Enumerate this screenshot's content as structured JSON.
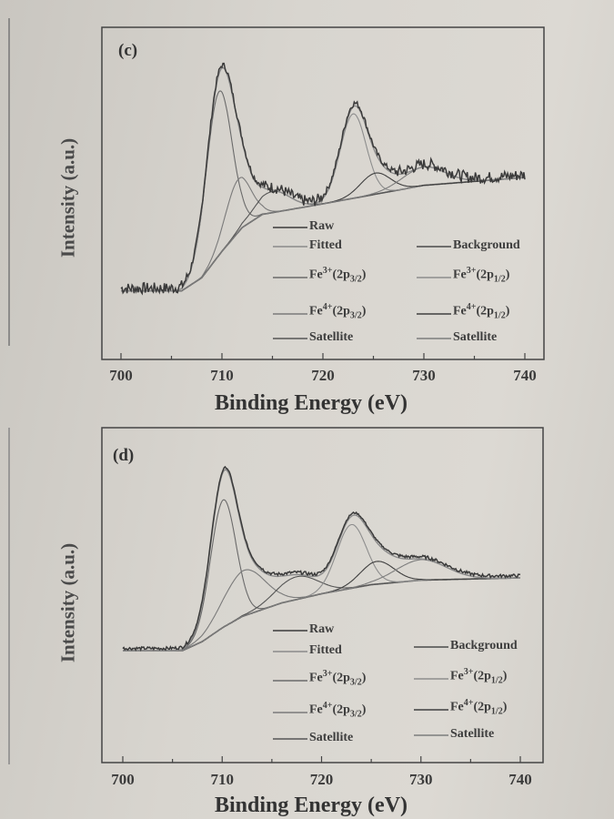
{
  "chart_data": [
    {
      "type": "line",
      "panel_label": "(c)",
      "xlabel": "Binding Energy (eV)",
      "ylabel": "Intensity (a.u.)",
      "xlim": [
        700,
        740
      ],
      "xticks": [
        "700",
        "710",
        "720",
        "730",
        "740"
      ],
      "grid": false,
      "legend_placement": "bottom-right",
      "legend": [
        {
          "key": "raw",
          "base": "Raw"
        },
        {
          "key": "fitted",
          "base": "Fitted"
        },
        {
          "key": "background",
          "base": "Background"
        },
        {
          "key": "fe3_32",
          "base": "Fe",
          "sup": "3+",
          "pre": "(2p",
          "sub": "3/2",
          "post": ")"
        },
        {
          "key": "fe3_12",
          "base": "Fe",
          "sup": "3+",
          "pre": "(2p",
          "sub": "1/2",
          "post": ")"
        },
        {
          "key": "fe4_32",
          "base": "Fe",
          "sup": "4+",
          "pre": "(2p",
          "sub": "3/2",
          "post": ")"
        },
        {
          "key": "fe4_12",
          "base": "Fe",
          "sup": "4+",
          "pre": "(2p",
          "sub": "1/2",
          "post": ")"
        },
        {
          "key": "sat1",
          "base": "Satellite"
        },
        {
          "key": "sat2",
          "base": "Satellite"
        }
      ],
      "background": [
        [
          700,
          7
        ],
        [
          706,
          7
        ],
        [
          708,
          12
        ],
        [
          710,
          22
        ],
        [
          712,
          31
        ],
        [
          714,
          36
        ],
        [
          720,
          40
        ],
        [
          730,
          47
        ],
        [
          740,
          50
        ]
      ],
      "components": [
        {
          "key": "fe3_32",
          "center": 709.7,
          "height": 62,
          "fwhm": 3.0
        },
        {
          "key": "fe4_32",
          "center": 711.6,
          "height": 20,
          "fwhm": 3.0
        },
        {
          "key": "sat1",
          "center": 715.0,
          "height": 8,
          "fwhm": 4.0
        },
        {
          "key": "fe3_12",
          "center": 723.0,
          "height": 32,
          "fwhm": 3.0
        },
        {
          "key": "fe4_12",
          "center": 725.2,
          "height": 8,
          "fwhm": 3.5
        },
        {
          "key": "sat2",
          "center": 730.0,
          "height": 7,
          "fwhm": 5.0
        }
      ],
      "colors": {
        "raw": "#3a3a3a",
        "fitted": "#8a8a8a",
        "background": "#4a4a4a",
        "fe3_32": "#6a6a6a",
        "fe3_12": "#8d8d8d",
        "fe4_32": "#7a7a7a",
        "fe4_12": "#3f3f3f",
        "sat1": "#555555",
        "sat2": "#7d7d7d"
      }
    },
    {
      "type": "line",
      "panel_label": "(d)",
      "xlabel": "Binding Energy (eV)",
      "ylabel": "Intensity (a.u.)",
      "xlim": [
        700,
        740
      ],
      "xticks": [
        "700",
        "710",
        "720",
        "730",
        "740"
      ],
      "grid": false,
      "legend_placement": "bottom-right",
      "legend": [
        {
          "key": "raw",
          "base": "Raw"
        },
        {
          "key": "fitted",
          "base": "Fitted"
        },
        {
          "key": "background",
          "base": "Background"
        },
        {
          "key": "fe3_32",
          "base": "Fe",
          "sup": "3+",
          "pre": "(2p",
          "sub": "3/2",
          "post": ")"
        },
        {
          "key": "fe3_12",
          "base": "Fe",
          "sup": "3+",
          "pre": "(2p",
          "sub": "1/2",
          "post": ")"
        },
        {
          "key": "fe4_32",
          "base": "Fe",
          "sup": "4+",
          "pre": "(2p",
          "sub": "3/2",
          "post": ")"
        },
        {
          "key": "fe4_12",
          "base": "Fe",
          "sup": "4+",
          "pre": "(2p",
          "sub": "1/2",
          "post": ")"
        },
        {
          "key": "sat1",
          "base": "Satellite"
        },
        {
          "key": "sat2",
          "base": "Satellite"
        }
      ],
      "background": [
        [
          700,
          10
        ],
        [
          706,
          10
        ],
        [
          708,
          14
        ],
        [
          710,
          20
        ],
        [
          712,
          25
        ],
        [
          716,
          31
        ],
        [
          720,
          35
        ],
        [
          725,
          39
        ],
        [
          730,
          41
        ],
        [
          740,
          42
        ]
      ],
      "components": [
        {
          "key": "fe3_32",
          "center": 710.1,
          "height": 56,
          "fwhm": 3.0
        },
        {
          "key": "fe4_32",
          "center": 712.2,
          "height": 20,
          "fwhm": 5.0
        },
        {
          "key": "sat1",
          "center": 717.5,
          "height": 10,
          "fwhm": 5.0
        },
        {
          "key": "fe3_12",
          "center": 723.0,
          "height": 28,
          "fwhm": 3.5
        },
        {
          "key": "fe4_12",
          "center": 725.6,
          "height": 10,
          "fwhm": 4.0
        },
        {
          "key": "sat2",
          "center": 730.0,
          "height": 9,
          "fwhm": 6.0
        }
      ],
      "colors": {
        "raw": "#3a3a3a",
        "fitted": "#8a8a8a",
        "background": "#4a4a4a",
        "fe3_32": "#6a6a6a",
        "fe3_12": "#8d8d8d",
        "fe4_32": "#7a7a7a",
        "fe4_12": "#3f3f3f",
        "sat1": "#555555",
        "sat2": "#7d7d7d"
      }
    }
  ]
}
